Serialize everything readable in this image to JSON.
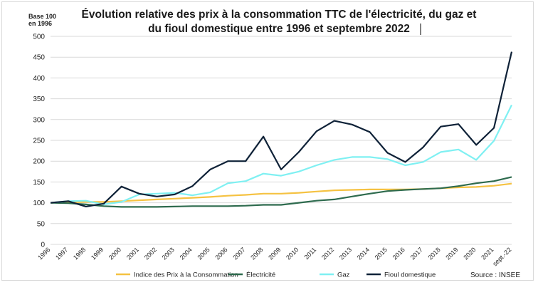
{
  "chart_data": {
    "type": "line",
    "title_lines": [
      "Évolution relative des prix à la consommation TTC de l'électricité, du gaz et",
      "du fioul domestique entre 1996 et septembre 2022"
    ],
    "ylabel_lines": [
      "Base 100",
      "en 1996"
    ],
    "source": "Source : INSEE",
    "ylim": [
      0,
      500
    ],
    "yticks": [
      0,
      50,
      100,
      150,
      200,
      250,
      300,
      350,
      400,
      450,
      500
    ],
    "grid": true,
    "legend_position": "bottom",
    "categories": [
      "1996",
      "1997",
      "1998",
      "1999",
      "2000",
      "2001",
      "2002",
      "2003",
      "2004",
      "2005",
      "2006",
      "2007",
      "2008",
      "2009",
      "2010",
      "2011",
      "2012",
      "2013",
      "2014",
      "2015",
      "2016",
      "2017",
      "2018",
      "2019",
      "2020",
      "2021",
      "sept.-22"
    ],
    "series": [
      {
        "name": "Indice des Prix à la Consommation",
        "color": "#f5c242",
        "values": [
          100,
          101,
          102,
          102,
          104,
          106,
          108,
          110,
          112,
          114,
          117,
          119,
          122,
          122,
          124,
          127,
          130,
          131,
          132,
          132,
          132,
          133,
          135,
          137,
          138,
          141,
          146
        ]
      },
      {
        "name": "Électricité",
        "color": "#2e6b4e",
        "values": [
          100,
          99,
          96,
          92,
          90,
          90,
          90,
          91,
          92,
          92,
          92,
          93,
          95,
          95,
          100,
          105,
          108,
          115,
          122,
          128,
          131,
          133,
          135,
          140,
          147,
          152,
          162
        ]
      },
      {
        "name": "Gaz",
        "color": "#7ff0f2",
        "values": [
          100,
          104,
          105,
          96,
          102,
          120,
          122,
          124,
          118,
          125,
          147,
          152,
          170,
          165,
          175,
          190,
          203,
          210,
          210,
          205,
          190,
          198,
          222,
          228,
          203,
          249,
          335
        ]
      },
      {
        "name": "Fioul domestique",
        "color": "#0f2238",
        "values": [
          100,
          104,
          91,
          98,
          139,
          122,
          115,
          120,
          140,
          180,
          200,
          200,
          259,
          180,
          222,
          272,
          297,
          288,
          270,
          220,
          198,
          233,
          283,
          289,
          239,
          280,
          463
        ]
      }
    ]
  }
}
